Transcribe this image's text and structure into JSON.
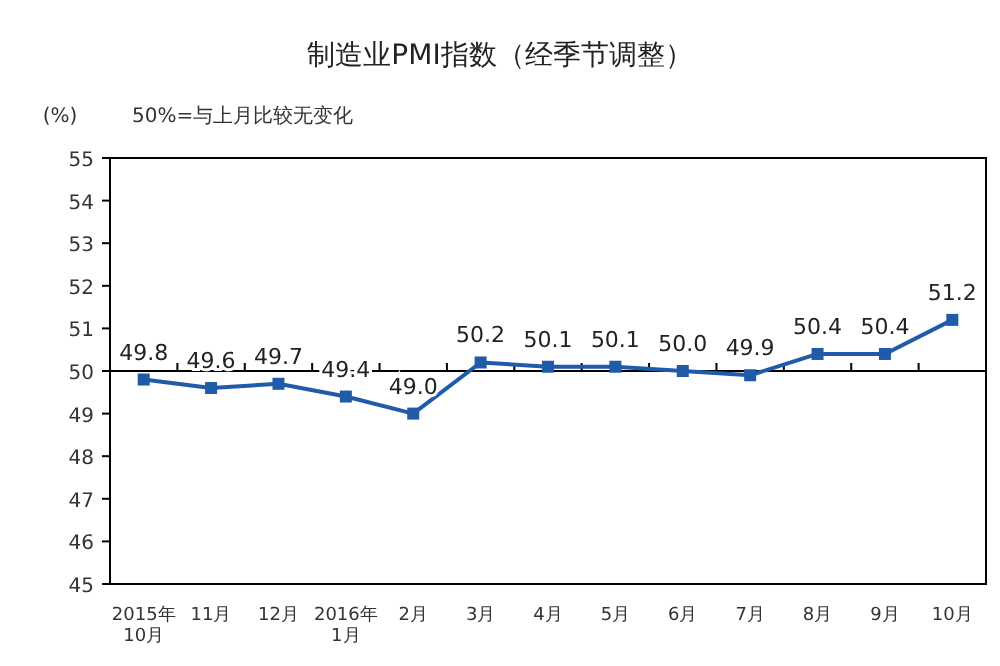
{
  "chart_data": {
    "type": "line",
    "title": "制造业PMI指数（经季节调整）",
    "ylabel": "(%)",
    "annotations": [
      "50%=与上月比较无变化"
    ],
    "categories": [
      "2015年\n10月",
      "11月",
      "12月",
      "2016年\n1月",
      "2月",
      "3月",
      "4月",
      "5月",
      "6月",
      "7月",
      "8月",
      "9月",
      "10月"
    ],
    "series": [
      {
        "color": "#1f5ba8",
        "values": [
          49.8,
          49.6,
          49.7,
          49.4,
          49.0,
          50.2,
          50.1,
          50.1,
          50.0,
          49.9,
          50.4,
          50.4,
          51.2
        ],
        "value_labels": [
          "49.8",
          "49.6",
          "49.7",
          "49.4",
          "49.0",
          "50.2",
          "50.1",
          "50.1",
          "50.0",
          "49.9",
          "50.4",
          "50.4",
          "51.2"
        ]
      }
    ],
    "ylim": [
      45,
      55
    ],
    "yticks": [
      45,
      46,
      47,
      48,
      49,
      50,
      51,
      52,
      53,
      54,
      55
    ],
    "ref_lines": [
      {
        "axis": "y",
        "value": 50,
        "color": "#000000"
      }
    ],
    "marker": "square",
    "grid": false
  }
}
